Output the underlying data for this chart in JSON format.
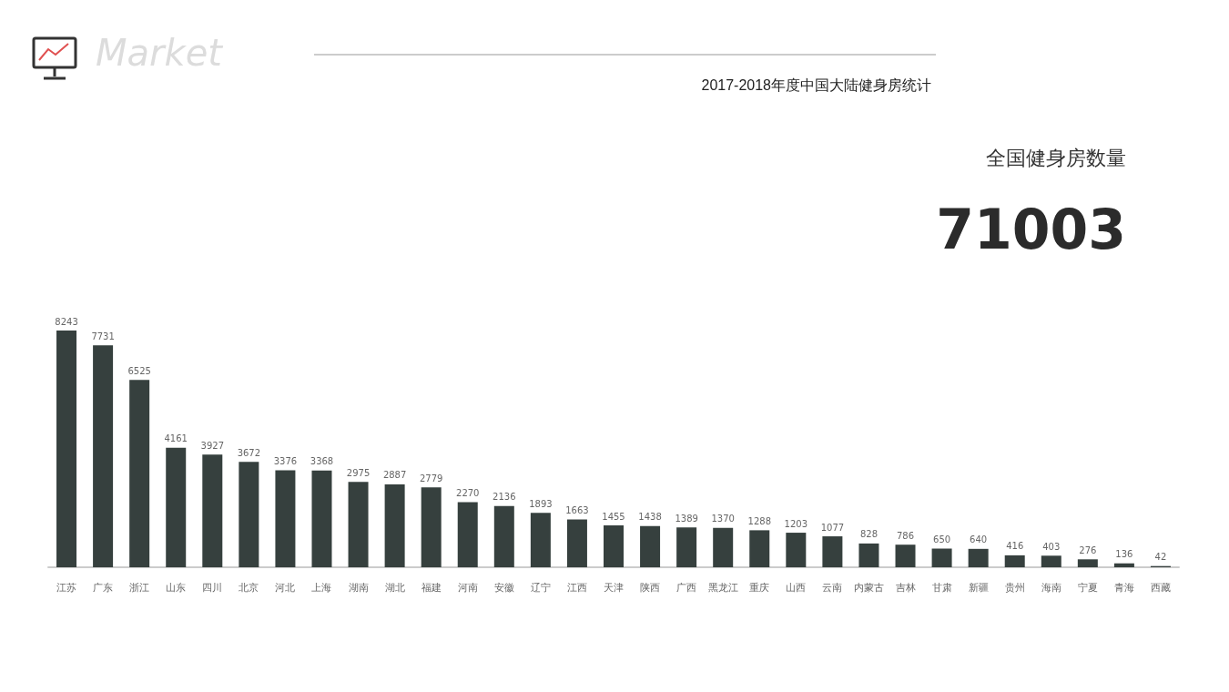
{
  "chart_data": {
    "type": "bar",
    "title": "2017-2018年度中国大陆健身房统计",
    "annotations": [
      "Market",
      "全国健身房数量",
      "71003"
    ],
    "categories": [
      "江苏",
      "广东",
      "浙江",
      "山东",
      "四川",
      "北京",
      "河北",
      "上海",
      "湖南",
      "湖北",
      "福建",
      "河南",
      "安徽",
      "辽宁",
      "江西",
      "天津",
      "陕西",
      "广西",
      "黑龙江",
      "重庆",
      "山西",
      "云南",
      "内蒙古",
      "吉林",
      "甘肃",
      "新疆",
      "贵州",
      "海南",
      "宁夏",
      "青海",
      "西藏"
    ],
    "values": [
      8243,
      7731,
      6525,
      4161,
      3927,
      3672,
      3376,
      3368,
      2975,
      2887,
      2779,
      2270,
      2136,
      1893,
      1663,
      1455,
      1438,
      1389,
      1370,
      1288,
      1203,
      1077,
      828,
      786,
      650,
      640,
      416,
      403,
      276,
      136,
      42
    ],
    "color": "#36403e",
    "data_labels": true
  }
}
